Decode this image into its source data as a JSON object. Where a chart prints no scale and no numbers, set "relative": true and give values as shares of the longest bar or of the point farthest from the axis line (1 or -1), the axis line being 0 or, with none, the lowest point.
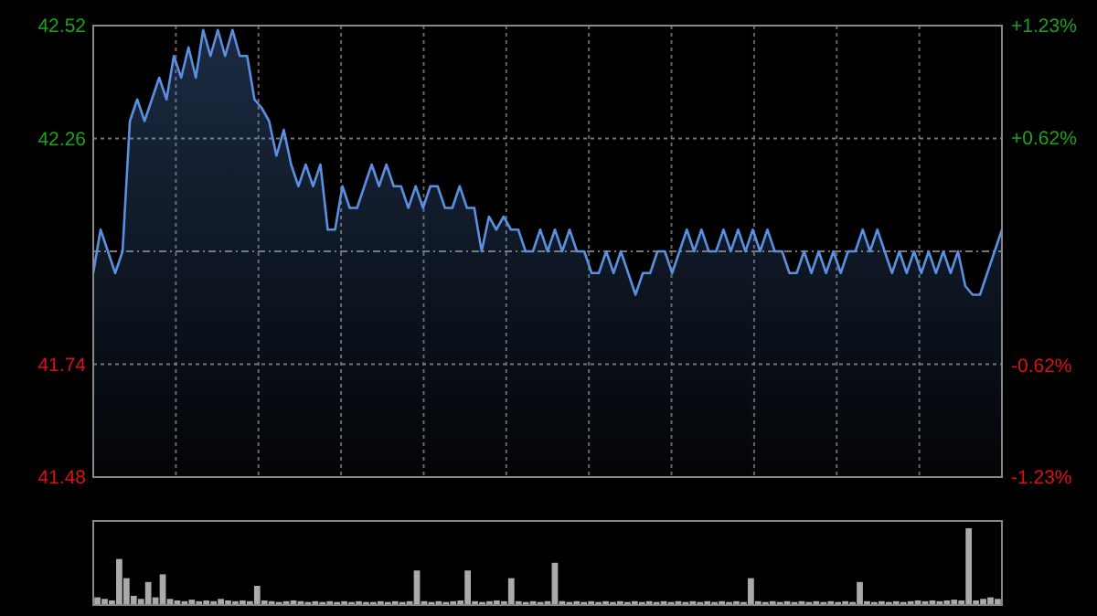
{
  "chart_data": [
    {
      "type": "area",
      "categories": [
        null,
        null,
        null,
        null,
        null,
        null,
        null,
        null,
        null,
        null,
        null,
        null,
        null,
        null,
        null,
        null,
        null,
        null,
        null,
        null,
        null,
        null,
        null,
        null,
        null,
        null,
        null,
        null,
        null,
        null,
        null,
        null,
        null,
        null,
        null,
        null,
        null,
        null,
        null,
        null,
        null,
        null,
        null,
        null,
        null,
        null,
        null,
        null,
        null,
        null,
        null,
        null,
        null,
        null,
        null,
        null,
        null,
        null,
        null,
        null,
        null,
        null,
        null,
        null,
        null,
        null,
        null,
        null,
        null,
        null,
        null,
        null,
        null,
        null,
        null,
        null,
        null,
        null,
        null,
        null,
        null,
        null,
        null,
        null,
        null,
        null,
        null,
        null,
        null,
        null,
        null,
        null,
        null,
        null,
        null,
        null,
        null,
        null,
        null,
        null,
        null,
        null,
        null,
        null,
        null,
        null,
        null,
        null,
        null,
        null,
        null,
        null,
        null,
        null,
        null,
        null,
        null,
        null,
        null,
        null,
        null,
        null,
        null,
        null,
        null
      ],
      "series": [
        {
          "color": "#5b8fe0",
          "values": [
            41.95,
            42.05,
            42.0,
            41.95,
            42.0,
            42.3,
            42.35,
            42.3,
            42.35,
            42.4,
            42.35,
            42.45,
            42.4,
            42.47,
            42.4,
            42.51,
            42.45,
            42.51,
            42.45,
            42.51,
            42.45,
            42.45,
            42.35,
            42.33,
            42.3,
            42.22,
            42.28,
            42.2,
            42.15,
            42.2,
            42.15,
            42.2,
            42.05,
            42.05,
            42.15,
            42.1,
            42.1,
            42.15,
            42.2,
            42.15,
            42.2,
            42.15,
            42.15,
            42.1,
            42.15,
            42.1,
            42.15,
            42.15,
            42.1,
            42.1,
            42.15,
            42.1,
            42.1,
            42.0,
            42.08,
            42.05,
            42.08,
            42.05,
            42.05,
            42.0,
            42.0,
            42.05,
            42.0,
            42.05,
            42.0,
            42.05,
            42.0,
            42.0,
            41.95,
            41.95,
            42.0,
            41.95,
            42.0,
            41.95,
            41.9,
            41.95,
            41.95,
            42.0,
            42.0,
            41.95,
            42.0,
            42.05,
            42.0,
            42.05,
            42.0,
            42.0,
            42.05,
            42.0,
            42.05,
            42.0,
            42.05,
            42.0,
            42.05,
            42.0,
            42.0,
            41.95,
            41.95,
            42.0,
            41.95,
            42.0,
            41.95,
            42.0,
            41.95,
            42.0,
            42.0,
            42.05,
            42.0,
            42.05,
            42.0,
            41.95,
            42.0,
            41.95,
            42.0,
            41.95,
            42.0,
            41.95,
            42.0,
            41.95,
            42.0,
            41.92,
            41.9,
            41.9,
            41.95,
            42.0,
            42.05
          ]
        }
      ],
      "ylim": [
        41.48,
        42.52
      ],
      "yticks": [
        41.48,
        41.74,
        {
          "value": 42.0,
          "label": null
        },
        42.26,
        42.52
      ],
      "y2lim": [
        -1.23,
        1.23
      ],
      "y2ticks": [
        {
          "value": -1.23,
          "label": "-1.23%"
        },
        {
          "value": -0.62,
          "label": "-0.62%"
        },
        {
          "value": 0.62,
          "label": "+0.62%"
        },
        {
          "value": 1.23,
          "label": "+1.23%"
        }
      ],
      "grid": true,
      "tick_labels": "y"
    },
    {
      "type": "bar",
      "relative": true,
      "categories": [
        null,
        null,
        null,
        null,
        null,
        null,
        null,
        null,
        null,
        null,
        null,
        null,
        null,
        null,
        null,
        null,
        null,
        null,
        null,
        null,
        null,
        null,
        null,
        null,
        null,
        null,
        null,
        null,
        null,
        null,
        null,
        null,
        null,
        null,
        null,
        null,
        null,
        null,
        null,
        null,
        null,
        null,
        null,
        null,
        null,
        null,
        null,
        null,
        null,
        null,
        null,
        null,
        null,
        null,
        null,
        null,
        null,
        null,
        null,
        null,
        null,
        null,
        null,
        null,
        null,
        null,
        null,
        null,
        null,
        null,
        null,
        null,
        null,
        null,
        null,
        null,
        null,
        null,
        null,
        null,
        null,
        null,
        null,
        null,
        null,
        null,
        null,
        null,
        null,
        null,
        null,
        null,
        null,
        null,
        null,
        null,
        null,
        null,
        null,
        null,
        null,
        null,
        null,
        null,
        null,
        null,
        null,
        null,
        null,
        null,
        null,
        null,
        null,
        null,
        null,
        null,
        null,
        null,
        null,
        null,
        null,
        null,
        null,
        null,
        null
      ],
      "series": [
        {
          "color": "#aaaaaa",
          "values": [
            0.1,
            0.08,
            0.06,
            0.6,
            0.35,
            0.12,
            0.08,
            0.3,
            0.1,
            0.4,
            0.08,
            0.06,
            0.05,
            0.07,
            0.05,
            0.06,
            0.05,
            0.08,
            0.06,
            0.05,
            0.06,
            0.05,
            0.25,
            0.06,
            0.05,
            0.04,
            0.05,
            0.06,
            0.05,
            0.04,
            0.05,
            0.04,
            0.05,
            0.04,
            0.05,
            0.04,
            0.05,
            0.04,
            0.04,
            0.05,
            0.04,
            0.05,
            0.04,
            0.05,
            0.45,
            0.05,
            0.04,
            0.05,
            0.04,
            0.05,
            0.06,
            0.45,
            0.05,
            0.04,
            0.05,
            0.06,
            0.05,
            0.35,
            0.05,
            0.04,
            0.05,
            0.04,
            0.05,
            0.55,
            0.05,
            0.04,
            0.05,
            0.04,
            0.05,
            0.04,
            0.05,
            0.04,
            0.05,
            0.04,
            0.05,
            0.04,
            0.05,
            0.04,
            0.05,
            0.04,
            0.05,
            0.04,
            0.05,
            0.04,
            0.05,
            0.04,
            0.05,
            0.04,
            0.05,
            0.04,
            0.35,
            0.05,
            0.04,
            0.05,
            0.04,
            0.05,
            0.04,
            0.05,
            0.04,
            0.05,
            0.04,
            0.05,
            0.04,
            0.05,
            0.04,
            0.3,
            0.05,
            0.04,
            0.05,
            0.04,
            0.05,
            0.04,
            0.05,
            0.06,
            0.05,
            0.06,
            0.05,
            0.06,
            0.07,
            0.06,
            1,
            0.06,
            0.08,
            0.1,
            0.08
          ]
        }
      ]
    }
  ]
}
